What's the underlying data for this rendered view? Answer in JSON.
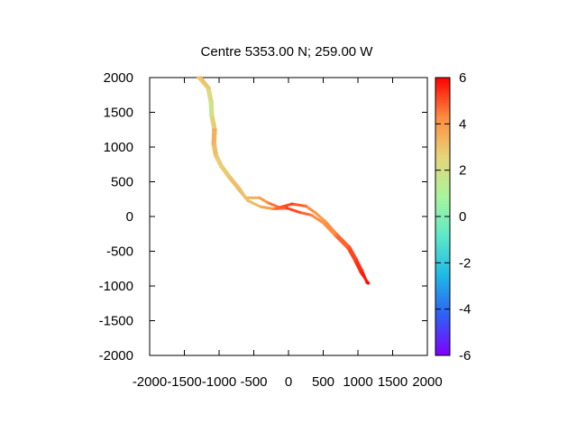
{
  "chart_data": {
    "type": "line",
    "title": "Centre 5353.00 N; 259.00  W",
    "xlabel": "",
    "ylabel": "",
    "xlim": [
      -2000,
      2000
    ],
    "ylim": [
      -2000,
      2000
    ],
    "xticks": [
      "-2000",
      "-1500",
      "-1000",
      "-500",
      "0",
      "500",
      "1000",
      "1500",
      "2000"
    ],
    "yticks": [
      "2000",
      "1500",
      "1000",
      "500",
      "0",
      "-500",
      "-1000",
      "-1500",
      "-2000"
    ],
    "colorbar": {
      "range": [
        -6,
        6
      ],
      "ticks": [
        "6",
        "4",
        "2",
        "0",
        "-2",
        "-4",
        "-6"
      ],
      "palette": [
        "#8000ff",
        "#2f5ff5",
        "#1fb8e5",
        "#5de8c8",
        "#a8f59c",
        "#e7d47a",
        "#ff8c40",
        "#ff0000"
      ]
    },
    "grid": false,
    "legend": "none",
    "series": [
      {
        "points": [
          {
            "x": -1300,
            "y": 2000,
            "c": 3.0
          },
          {
            "x": -1170,
            "y": 1850,
            "c": 2.6
          },
          {
            "x": -1130,
            "y": 1650,
            "c": 1.6
          },
          {
            "x": -1120,
            "y": 1450,
            "c": 1.4
          },
          {
            "x": -1080,
            "y": 1250,
            "c": 3.6
          },
          {
            "x": -1090,
            "y": 1050,
            "c": 3.4
          },
          {
            "x": -1060,
            "y": 880,
            "c": 2.8
          },
          {
            "x": -980,
            "y": 720,
            "c": 2.6
          },
          {
            "x": -860,
            "y": 560,
            "c": 2.9
          },
          {
            "x": -730,
            "y": 400,
            "c": 3.2
          },
          {
            "x": -620,
            "y": 270,
            "c": 3.3
          },
          {
            "x": -420,
            "y": 270,
            "c": 3.6
          },
          {
            "x": -300,
            "y": 200,
            "c": 4.2
          },
          {
            "x": -130,
            "y": 130,
            "c": 5.0
          },
          {
            "x": 50,
            "y": 180,
            "c": 5.2
          },
          {
            "x": 250,
            "y": 150,
            "c": 4.6
          },
          {
            "x": 380,
            "y": 60,
            "c": 4.0
          },
          {
            "x": 530,
            "y": -70,
            "c": 4.0
          },
          {
            "x": 700,
            "y": -260,
            "c": 4.6
          },
          {
            "x": 880,
            "y": -440,
            "c": 5.0
          },
          {
            "x": 980,
            "y": -620,
            "c": 5.3
          },
          {
            "x": 1060,
            "y": -780,
            "c": 5.5
          },
          {
            "x": 1130,
            "y": -950,
            "c": 5.8
          }
        ]
      },
      {
        "points": [
          {
            "x": -1260,
            "y": 2000,
            "c": 3.2
          },
          {
            "x": -1140,
            "y": 1850,
            "c": 2.8
          },
          {
            "x": -1100,
            "y": 1650,
            "c": 1.8
          },
          {
            "x": -1090,
            "y": 1450,
            "c": 2.2
          },
          {
            "x": -1050,
            "y": 1250,
            "c": 3.4
          },
          {
            "x": -1060,
            "y": 1050,
            "c": 3.2
          },
          {
            "x": -1030,
            "y": 880,
            "c": 2.9
          },
          {
            "x": -950,
            "y": 720,
            "c": 2.7
          },
          {
            "x": -830,
            "y": 560,
            "c": 3.0
          },
          {
            "x": -700,
            "y": 400,
            "c": 3.1
          },
          {
            "x": -590,
            "y": 230,
            "c": 3.0
          },
          {
            "x": -400,
            "y": 140,
            "c": 3.4
          },
          {
            "x": -220,
            "y": 110,
            "c": 4.2
          },
          {
            "x": -20,
            "y": 120,
            "c": 5.3
          },
          {
            "x": 160,
            "y": 60,
            "c": 5.0
          },
          {
            "x": 330,
            "y": 20,
            "c": 4.4
          },
          {
            "x": 500,
            "y": -90,
            "c": 4.0
          },
          {
            "x": 680,
            "y": -280,
            "c": 4.5
          },
          {
            "x": 860,
            "y": -460,
            "c": 5.0
          },
          {
            "x": 960,
            "y": -640,
            "c": 5.3
          },
          {
            "x": 1040,
            "y": -800,
            "c": 5.6
          },
          {
            "x": 1150,
            "y": -960,
            "c": 5.9
          }
        ]
      }
    ]
  }
}
